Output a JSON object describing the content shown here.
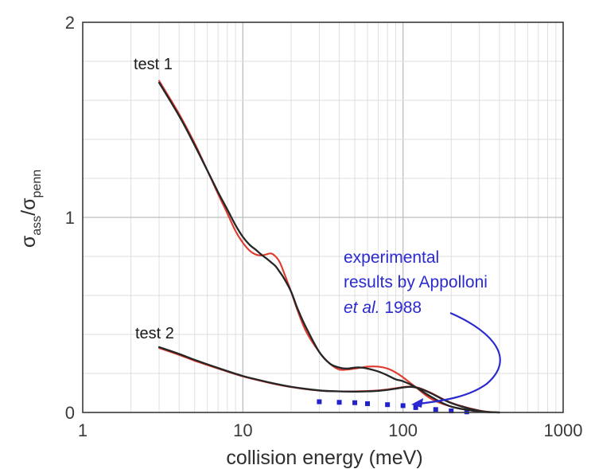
{
  "chart_data": {
    "type": "line",
    "title": "",
    "xlabel": "collision energy (meV)",
    "ylabel": "σass/σpenn",
    "ylabel_parts": {
      "symbol": "σ",
      "sub1": "ass",
      "slash": "/",
      "sub2": "penn"
    },
    "x_scale": "log",
    "xlim": [
      1,
      1000
    ],
    "ylim": [
      0,
      2
    ],
    "x_ticks": [
      1,
      10,
      100,
      1000
    ],
    "x_tick_labels": [
      "1",
      "10",
      "100",
      "1000"
    ],
    "y_ticks": [
      0,
      1,
      2
    ],
    "y_tick_labels": [
      "0",
      "1",
      "2"
    ],
    "grid": true,
    "series": [
      {
        "name": "test 1",
        "variant": "red",
        "color": "#e03a2e",
        "x": [
          3,
          4,
          5,
          6,
          7,
          8,
          9,
          10,
          11,
          12,
          13,
          14,
          15,
          16,
          17,
          18,
          20,
          22,
          25,
          30,
          35,
          40,
          45,
          50,
          55,
          60,
          70,
          80,
          90,
          100,
          120,
          150,
          200,
          300,
          400
        ],
        "y": [
          1.7,
          1.53,
          1.38,
          1.24,
          1.12,
          1.02,
          0.93,
          0.87,
          0.83,
          0.81,
          0.805,
          0.81,
          0.815,
          0.8,
          0.77,
          0.72,
          0.62,
          0.52,
          0.41,
          0.31,
          0.25,
          0.22,
          0.22,
          0.225,
          0.23,
          0.235,
          0.235,
          0.225,
          0.205,
          0.18,
          0.13,
          0.07,
          0.03,
          0.005,
          0.0
        ]
      },
      {
        "name": "test 1",
        "variant": "black",
        "color": "#262626",
        "x": [
          3,
          4,
          5,
          6,
          7,
          8,
          9,
          10,
          11,
          12,
          13,
          14,
          15,
          16,
          17,
          18,
          20,
          22,
          25,
          30,
          35,
          40,
          45,
          50,
          55,
          60,
          70,
          80,
          90,
          100,
          120,
          150,
          200,
          300,
          400
        ],
        "y": [
          1.69,
          1.52,
          1.37,
          1.24,
          1.13,
          1.04,
          0.96,
          0.9,
          0.86,
          0.835,
          0.81,
          0.79,
          0.77,
          0.75,
          0.72,
          0.69,
          0.62,
          0.53,
          0.43,
          0.31,
          0.25,
          0.23,
          0.225,
          0.23,
          0.23,
          0.225,
          0.21,
          0.19,
          0.17,
          0.16,
          0.13,
          0.08,
          0.03,
          0.005,
          0.0
        ]
      },
      {
        "name": "test 2",
        "variant": "red",
        "color": "#e03a2e",
        "x": [
          3,
          4,
          5,
          7,
          10,
          15,
          20,
          30,
          40,
          50,
          60,
          70,
          80,
          90,
          100,
          110,
          120,
          130,
          150,
          200,
          300,
          400
        ],
        "y": [
          0.33,
          0.295,
          0.265,
          0.225,
          0.185,
          0.15,
          0.13,
          0.112,
          0.108,
          0.108,
          0.11,
          0.113,
          0.118,
          0.124,
          0.13,
          0.133,
          0.13,
          0.122,
          0.1,
          0.05,
          0.01,
          0.0
        ]
      },
      {
        "name": "test 2",
        "variant": "black",
        "color": "#262626",
        "x": [
          3,
          4,
          5,
          7,
          10,
          15,
          20,
          30,
          40,
          50,
          60,
          70,
          80,
          90,
          100,
          110,
          120,
          130,
          150,
          200,
          300,
          400
        ],
        "y": [
          0.335,
          0.3,
          0.27,
          0.228,
          0.187,
          0.152,
          0.132,
          0.113,
          0.108,
          0.107,
          0.108,
          0.111,
          0.116,
          0.122,
          0.128,
          0.131,
          0.128,
          0.12,
          0.098,
          0.048,
          0.008,
          0.0
        ]
      }
    ],
    "experimental_points": {
      "color": "#2222cc",
      "x": [
        30,
        40,
        50,
        60,
        80,
        100,
        120,
        160,
        200,
        250
      ],
      "y": [
        0.055,
        0.052,
        0.05,
        0.045,
        0.04,
        0.035,
        0.025,
        0.015,
        0.008,
        0.003
      ]
    },
    "annotations": {
      "test1_label": "test 1",
      "test2_label": "test 2",
      "experimental_line1": "experimental",
      "experimental_line2": "results by Appolloni",
      "experimental_line3_italic": "et al.",
      "experimental_line3_rest": " 1988",
      "arrow_color": "#2a2ad0"
    }
  }
}
